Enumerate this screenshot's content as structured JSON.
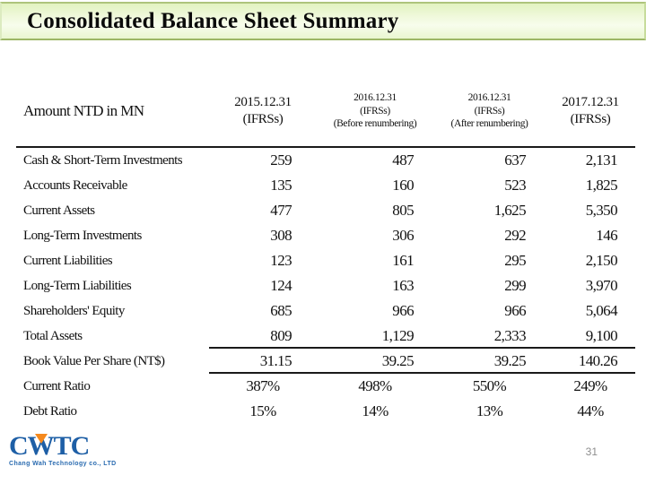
{
  "title": "Consolidated Balance Sheet Summary",
  "table": {
    "corner_label": "Amount NTD in MN",
    "columns": [
      {
        "line1": "2015.12.31",
        "line2": "(IFRSs)",
        "line3": ""
      },
      {
        "line1": "2016.12.31",
        "line2": "(IFRSs)",
        "line3": "(Before renumbering)"
      },
      {
        "line1": "2016.12.31",
        "line2": "(IFRSs)",
        "line3": "(After renumbering)"
      },
      {
        "line1": "2017.12.31",
        "line2": "(IFRSs)",
        "line3": ""
      }
    ],
    "rows": [
      {
        "label": "Cash & Short-Term Investments",
        "values": [
          "259",
          "487",
          "637",
          "2,131"
        ]
      },
      {
        "label": "Accounts Receivable",
        "values": [
          "135",
          "160",
          "523",
          "1,825"
        ]
      },
      {
        "label": "Current Assets",
        "values": [
          "477",
          "805",
          "1,625",
          "5,350"
        ]
      },
      {
        "label": "Long-Term Investments",
        "values": [
          "308",
          "306",
          "292",
          "146"
        ]
      },
      {
        "label": "Current Liabilities",
        "values": [
          "123",
          "161",
          "295",
          "2,150"
        ]
      },
      {
        "label": "Long-Term Liabilities",
        "values": [
          "124",
          "163",
          "299",
          "3,970"
        ]
      },
      {
        "label": "Shareholders' Equity",
        "values": [
          "685",
          "966",
          "966",
          "5,064"
        ]
      },
      {
        "label": "Total Assets",
        "values": [
          "809",
          "1,129",
          "2,333",
          "9,100"
        ]
      },
      {
        "label": "Book Value Per Share (NT$)",
        "values": [
          "31.15",
          "39.25",
          "39.25",
          "140.26"
        ]
      },
      {
        "label": "Current Ratio",
        "values": [
          "387%",
          "498%",
          "550%",
          "249%"
        ]
      },
      {
        "label": "Debt Ratio",
        "values": [
          "15%",
          "14%",
          "13%",
          "44%"
        ]
      }
    ]
  },
  "footer": {
    "logo_text": "CWTC",
    "logo_tagline": "Chang Wah Technology co., LTD",
    "page_number": "31"
  },
  "colors": {
    "title_bar_green": "#e9f6cf",
    "title_bar_border": "#9cb766",
    "logo_blue": "#1e5fa6",
    "logo_orange": "#f5891d",
    "page_number_gray": "#8e8e8e"
  }
}
